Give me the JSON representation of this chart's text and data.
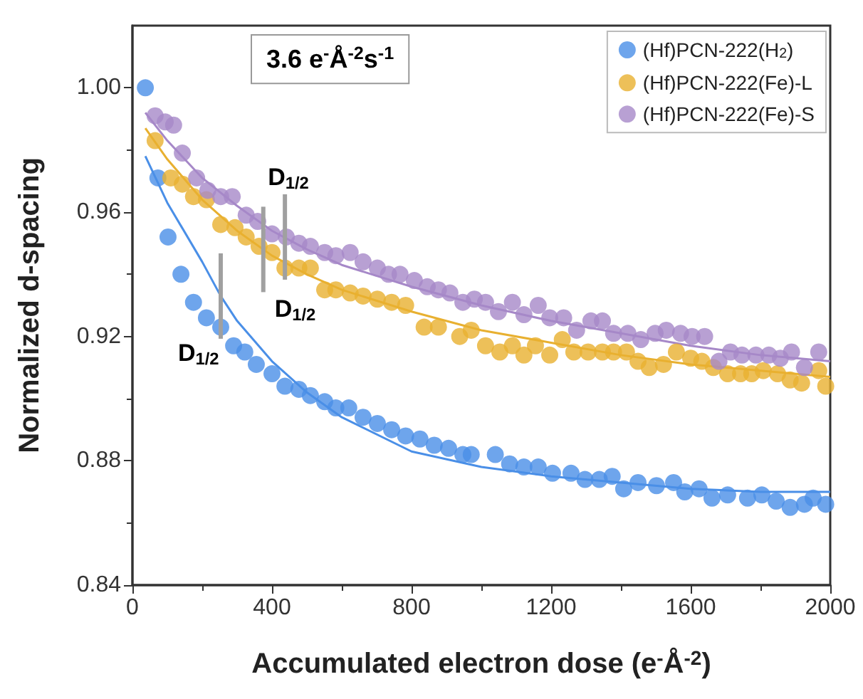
{
  "chart_data": {
    "type": "scatter",
    "xlabel": "Accumulated electron dose (e$^{-}$Å$^{-2}$)",
    "ylabel": "Normalized d-spacing",
    "xlim": [
      0,
      2000
    ],
    "xticks": [
      0,
      400,
      800,
      1200,
      1600,
      2000
    ],
    "ylim": [
      0.84,
      1.02
    ],
    "yticks": [
      0.84,
      0.88,
      0.92,
      0.96,
      {
        "value": 1.0,
        "label": "1.00"
      }
    ],
    "legend": "top right",
    "grid": false,
    "marker": "circle",
    "series": [
      {
        "name": "(Hf)PCN-222(H$_{2}$)",
        "color": "#4a8fe7",
        "x": [
          37,
          73,
          102,
          139,
          175,
          212,
          253,
          290,
          322,
          355,
          400,
          437,
          477,
          510,
          551,
          583,
          620,
          661,
          702,
          743,
          783,
          824,
          865,
          906,
          947,
          971,
          1040,
          1081,
          1122,
          1163,
          1204,
          1257,
          1297,
          1338,
          1375,
          1408,
          1449,
          1502,
          1551,
          1583,
          1624,
          1661,
          1706,
          1763,
          1804,
          1845,
          1885,
          1926,
          1951,
          1987
        ],
        "values": [
          1.0,
          0.971,
          0.952,
          0.94,
          0.931,
          0.926,
          0.923,
          0.917,
          0.915,
          0.911,
          0.908,
          0.904,
          0.903,
          0.901,
          0.899,
          0.897,
          0.897,
          0.894,
          0.892,
          0.89,
          0.888,
          0.887,
          0.885,
          0.884,
          0.882,
          0.882,
          0.882,
          0.879,
          0.878,
          0.878,
          0.876,
          0.876,
          0.874,
          0.874,
          0.875,
          0.871,
          0.873,
          0.872,
          0.873,
          0.87,
          0.871,
          0.868,
          0.869,
          0.868,
          0.869,
          0.867,
          0.865,
          0.866,
          0.868,
          0.866
        ]
      },
      {
        "name": "(Hf)PCN-222(Fe)-L",
        "color": "#e8b030",
        "x": [
          65,
          110,
          143,
          175,
          212,
          253,
          294,
          326,
          363,
          400,
          437,
          477,
          510,
          551,
          583,
          624,
          661,
          702,
          743,
          783,
          836,
          877,
          938,
          971,
          1012,
          1053,
          1089,
          1122,
          1155,
          1196,
          1232,
          1265,
          1306,
          1347,
          1379,
          1416,
          1449,
          1481,
          1522,
          1559,
          1600,
          1632,
          1665,
          1706,
          1743,
          1775,
          1808,
          1849,
          1885,
          1918,
          1967,
          1987
        ],
        "values": [
          0.983,
          0.971,
          0.969,
          0.965,
          0.964,
          0.956,
          0.955,
          0.952,
          0.949,
          0.947,
          0.942,
          0.942,
          0.942,
          0.935,
          0.935,
          0.934,
          0.933,
          0.932,
          0.931,
          0.93,
          0.923,
          0.923,
          0.92,
          0.922,
          0.917,
          0.915,
          0.917,
          0.914,
          0.917,
          0.914,
          0.919,
          0.915,
          0.915,
          0.915,
          0.915,
          0.915,
          0.912,
          0.91,
          0.911,
          0.915,
          0.913,
          0.912,
          0.91,
          0.908,
          0.908,
          0.908,
          0.909,
          0.908,
          0.906,
          0.905,
          0.909,
          0.904
        ]
      },
      {
        "name": "(Hf)PCN-222(Fe)-S",
        "color": "#a688c8",
        "x": [
          65,
          94,
          118,
          143,
          184,
          216,
          253,
          286,
          326,
          359,
          400,
          441,
          477,
          510,
          551,
          583,
          624,
          661,
          702,
          734,
          767,
          808,
          845,
          877,
          910,
          947,
          980,
          1012,
          1049,
          1089,
          1122,
          1163,
          1196,
          1236,
          1273,
          1314,
          1347,
          1379,
          1420,
          1457,
          1498,
          1530,
          1571,
          1604,
          1640,
          1681,
          1714,
          1747,
          1787,
          1824,
          1857,
          1889,
          1926,
          1967
        ],
        "values": [
          0.991,
          0.989,
          0.988,
          0.979,
          0.971,
          0.967,
          0.965,
          0.965,
          0.959,
          0.957,
          0.953,
          0.952,
          0.95,
          0.949,
          0.947,
          0.946,
          0.947,
          0.944,
          0.942,
          0.94,
          0.94,
          0.938,
          0.936,
          0.935,
          0.934,
          0.931,
          0.932,
          0.931,
          0.928,
          0.931,
          0.927,
          0.93,
          0.926,
          0.926,
          0.922,
          0.925,
          0.925,
          0.921,
          0.921,
          0.919,
          0.921,
          0.922,
          0.921,
          0.92,
          0.92,
          0.912,
          0.915,
          0.914,
          0.914,
          0.914,
          0.913,
          0.915,
          0.91,
          0.915
        ]
      },
      {
        "type": "line",
        "marker": "none",
        "color": "#4a8fe7",
        "x": [
          37,
          100,
          200,
          253,
          300,
          400,
          500,
          600,
          800,
          1000,
          1200,
          1400,
          1600,
          1800,
          2000
        ],
        "values": [
          0.978,
          0.963,
          0.944,
          0.933,
          0.925,
          0.912,
          0.902,
          0.894,
          0.883,
          0.878,
          0.875,
          0.873,
          0.871,
          0.87,
          0.87
        ]
      },
      {
        "type": "line",
        "marker": "none",
        "color": "#e8b030",
        "x": [
          37,
          100,
          200,
          300,
          400,
          500,
          600,
          800,
          1000,
          1200,
          1400,
          1600,
          1800,
          2000
        ],
        "values": [
          0.987,
          0.977,
          0.964,
          0.954,
          0.946,
          0.94,
          0.935,
          0.928,
          0.922,
          0.918,
          0.914,
          0.911,
          0.909,
          0.907
        ]
      },
      {
        "type": "line",
        "marker": "none",
        "color": "#a688c8",
        "x": [
          37,
          100,
          200,
          300,
          400,
          500,
          600,
          800,
          1000,
          1200,
          1400,
          1600,
          1800,
          2000
        ],
        "values": [
          0.992,
          0.983,
          0.971,
          0.962,
          0.954,
          0.948,
          0.943,
          0.936,
          0.93,
          0.925,
          0.921,
          0.917,
          0.914,
          0.912
        ]
      }
    ],
    "annotations": [
      "3.6 e$^{-}$Å$^{-2}$s$^{-1}$",
      {
        "text": "D$_{1/2}$",
        "x": 253,
        "y": 0.933
      },
      {
        "text": "D$_{1/2}$",
        "x": 375,
        "y": 0.948
      },
      {
        "text": "D$_{1/2}$",
        "x": 437,
        "y": 0.952
      }
    ]
  }
}
